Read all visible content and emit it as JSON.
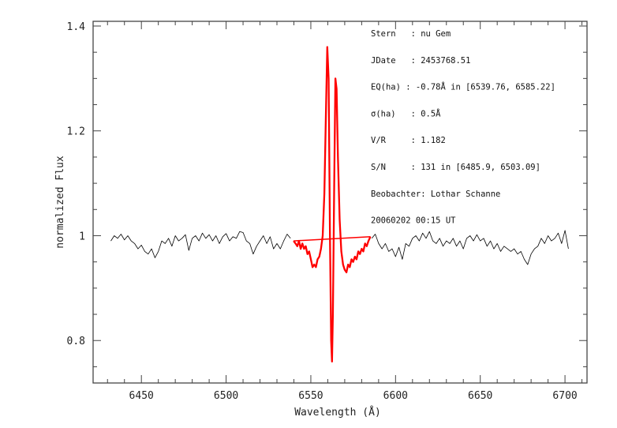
{
  "chart_data": {
    "type": "line",
    "xlabel": "Wavelength (Å)",
    "ylabel": "normalized Flux",
    "xlim": [
      6421.5,
      6713
    ],
    "ylim": [
      0.719,
      1.409
    ],
    "x_ticks": [
      6450,
      6500,
      6550,
      6600,
      6650,
      6700
    ],
    "x_tick_labels": [
      "6450",
      "6500",
      "6550",
      "6600",
      "6650",
      "6700"
    ],
    "y_ticks": [
      0.8,
      1.0,
      1.2,
      1.4
    ],
    "y_tick_labels": [
      "0.8",
      "1",
      "1.2",
      "1.4"
    ],
    "grid": false,
    "colors": {
      "spectrum": "#000000",
      "line_region": "#ff0000",
      "axes": "#444444"
    },
    "series": [
      {
        "role": "spectrum-blue-side",
        "color": "#000000",
        "x_start": 6432,
        "x_step": 2,
        "y": [
          0.99,
          1.0,
          0.995,
          1.003,
          0.992,
          1.0,
          0.99,
          0.985,
          0.975,
          0.982,
          0.97,
          0.965,
          0.975,
          0.958,
          0.97,
          0.99,
          0.985,
          0.995,
          0.98,
          1.0,
          0.99,
          0.995,
          1.002,
          0.972,
          0.995,
          1.0,
          0.99,
          1.005,
          0.995,
          1.002,
          0.99,
          1.0,
          0.985,
          0.998,
          1.004,
          0.99,
          0.998,
          0.995,
          1.008,
          1.006,
          0.99,
          0.985,
          0.965,
          0.98,
          0.99,
          1.0,
          0.985,
          0.998,
          0.975,
          0.985,
          0.975,
          0.99,
          1.003,
          0.995
        ]
      },
      {
        "role": "spectrum-red-side",
        "color": "#000000",
        "x_start": 6586,
        "x_step": 2,
        "y": [
          0.995,
          1.003,
          0.985,
          0.975,
          0.985,
          0.97,
          0.975,
          0.96,
          0.978,
          0.955,
          0.985,
          0.98,
          0.995,
          1.0,
          0.99,
          1.005,
          0.995,
          1.008,
          0.99,
          0.985,
          0.995,
          0.98,
          0.99,
          0.985,
          0.995,
          0.98,
          0.99,
          0.975,
          0.995,
          1.0,
          0.99,
          1.002,
          0.99,
          0.995,
          0.98,
          0.99,
          0.975,
          0.985,
          0.97,
          0.98,
          0.975,
          0.97,
          0.975,
          0.965,
          0.97,
          0.955,
          0.945,
          0.965,
          0.975,
          0.98,
          0.995,
          0.985,
          1.0,
          0.99,
          0.995,
          1.005,
          0.985,
          1.01,
          0.975
        ]
      },
      {
        "role": "h-alpha-region",
        "color": "#ff0000",
        "points": [
          [
            6539.8,
            0.99
          ],
          [
            6541,
            0.985
          ],
          [
            6542,
            0.98
          ],
          [
            6543,
            0.99
          ],
          [
            6544,
            0.975
          ],
          [
            6545,
            0.985
          ],
          [
            6546,
            0.975
          ],
          [
            6547,
            0.98
          ],
          [
            6548,
            0.965
          ],
          [
            6549,
            0.97
          ],
          [
            6550,
            0.955
          ],
          [
            6551,
            0.94
          ],
          [
            6552,
            0.945
          ],
          [
            6553,
            0.94
          ],
          [
            6554,
            0.955
          ],
          [
            6555,
            0.96
          ],
          [
            6556,
            0.975
          ],
          [
            6557,
            1.0
          ],
          [
            6558,
            1.08
          ],
          [
            6559,
            1.25
          ],
          [
            6559.7,
            1.36
          ],
          [
            6560.5,
            1.3
          ],
          [
            6561.3,
            1.0
          ],
          [
            6562,
            0.8
          ],
          [
            6562.5,
            0.76
          ],
          [
            6563,
            0.85
          ],
          [
            6563.8,
            1.1
          ],
          [
            6564.5,
            1.3
          ],
          [
            6565.2,
            1.28
          ],
          [
            6566,
            1.15
          ],
          [
            6567,
            1.03
          ],
          [
            6568,
            0.97
          ],
          [
            6569,
            0.945
          ],
          [
            6570,
            0.935
          ],
          [
            6571,
            0.93
          ],
          [
            6572,
            0.945
          ],
          [
            6573,
            0.94
          ],
          [
            6574,
            0.955
          ],
          [
            6575,
            0.95
          ],
          [
            6576,
            0.96
          ],
          [
            6577,
            0.955
          ],
          [
            6578,
            0.97
          ],
          [
            6579,
            0.965
          ],
          [
            6580,
            0.975
          ],
          [
            6581,
            0.97
          ],
          [
            6582,
            0.985
          ],
          [
            6583,
            0.98
          ],
          [
            6584,
            0.99
          ],
          [
            6585.2,
            0.998
          ]
        ]
      },
      {
        "role": "continuum-line",
        "color": "#ff0000",
        "points": [
          [
            6539.76,
            0.99
          ],
          [
            6585.22,
            0.998
          ]
        ]
      }
    ],
    "annotations": [
      "Stern   : nu Gem",
      "JDate   : 2453768.51",
      "EQ(ha) : -0.78Å in [6539.76, 6585.22]",
      "σ(ha)   : 0.5Å",
      "V/R     : 1.182",
      "S/N     : 131 in [6485.9, 6503.09]",
      "Beobachter: Lothar Schanne",
      "20060202 00:15 UT"
    ]
  }
}
